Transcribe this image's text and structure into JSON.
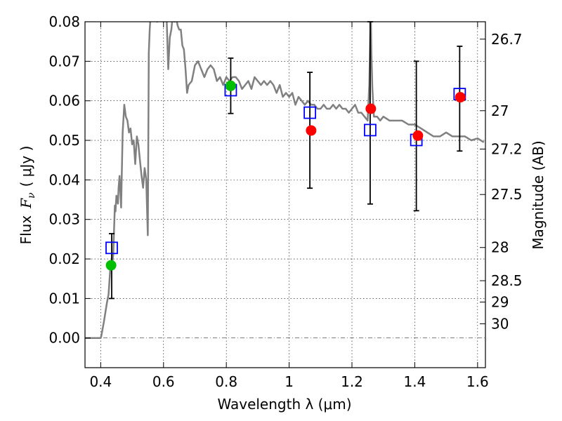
{
  "chart_data": {
    "type": "scatter",
    "xlabel": "Wavelength  λ (μm)",
    "ylabel_prefix": "Flux",
    "ylabel_symbol": "F",
    "ylabel_subscript": "ν",
    "ylabel_units": "( μJy )",
    "y2label": "Magnitude (AB)",
    "xlim": [
      0.35,
      1.625
    ],
    "ylim": [
      -0.0075,
      0.08
    ],
    "grid": true,
    "x_ticks": [
      0.4,
      0.6,
      0.8,
      1.0,
      1.2,
      1.4,
      1.6
    ],
    "x_tick_labels": [
      "0.4",
      "0.6",
      "0.8",
      "1",
      "1.2",
      "1.4",
      "1.6"
    ],
    "y_ticks": [
      0.0,
      0.01,
      0.02,
      0.03,
      0.04,
      0.05,
      0.06,
      0.07,
      0.08
    ],
    "y_tick_labels": [
      "0.00",
      "0.01",
      "0.02",
      "0.03",
      "0.04",
      "0.05",
      "0.06",
      "0.07",
      "0.08"
    ],
    "magnitude_ticks": [
      {
        "label": "26.7",
        "flux": 0.0756
      },
      {
        "label": "27",
        "flux": 0.0575
      },
      {
        "label": "27.2",
        "flux": 0.0478
      },
      {
        "label": "27.5",
        "flux": 0.0363
      },
      {
        "label": "28",
        "flux": 0.0229
      },
      {
        "label": "28.5",
        "flux": 0.0145
      },
      {
        "label": "29",
        "flux": 0.0091
      },
      {
        "label": "30",
        "flux": 0.0036
      }
    ],
    "series": [
      {
        "name": "model SED",
        "kind": "line",
        "color": "#808080",
        "x": [
          0.35,
          0.4,
          0.402,
          0.41,
          0.42,
          0.425,
          0.43,
          0.435,
          0.44,
          0.442,
          0.445,
          0.447,
          0.45,
          0.455,
          0.457,
          0.46,
          0.465,
          0.47,
          0.475,
          0.48,
          0.485,
          0.49,
          0.495,
          0.5,
          0.505,
          0.51,
          0.515,
          0.52,
          0.525,
          0.53,
          0.535,
          0.54,
          0.545,
          0.547,
          0.55,
          0.553,
          0.556,
          0.56,
          0.565,
          0.57,
          0.58,
          0.59,
          0.6,
          0.605,
          0.61,
          0.615,
          0.62,
          0.625,
          0.63,
          0.635,
          0.64,
          0.645,
          0.65,
          0.655,
          0.66,
          0.665,
          0.67,
          0.675,
          0.68,
          0.69,
          0.7,
          0.71,
          0.72,
          0.73,
          0.74,
          0.75,
          0.76,
          0.77,
          0.78,
          0.79,
          0.8,
          0.81,
          0.82,
          0.83,
          0.84,
          0.85,
          0.86,
          0.87,
          0.88,
          0.89,
          0.9,
          0.91,
          0.92,
          0.93,
          0.94,
          0.95,
          0.96,
          0.97,
          0.98,
          0.99,
          1.0,
          1.01,
          1.02,
          1.03,
          1.04,
          1.05,
          1.06,
          1.07,
          1.08,
          1.09,
          1.1,
          1.11,
          1.12,
          1.13,
          1.14,
          1.15,
          1.16,
          1.17,
          1.18,
          1.19,
          1.2,
          1.21,
          1.22,
          1.23,
          1.24,
          1.25,
          1.255,
          1.258,
          1.26,
          1.262,
          1.265,
          1.27,
          1.28,
          1.29,
          1.3,
          1.32,
          1.34,
          1.36,
          1.38,
          1.4,
          1.42,
          1.44,
          1.46,
          1.48,
          1.5,
          1.52,
          1.54,
          1.56,
          1.58,
          1.6,
          1.62
        ],
        "y": [
          0.0,
          0.0,
          0.0005,
          0.004,
          0.009,
          0.011,
          0.017,
          0.018,
          0.021,
          0.026,
          0.0335,
          0.032,
          0.036,
          0.034,
          0.038,
          0.041,
          0.033,
          0.052,
          0.059,
          0.056,
          0.055,
          0.052,
          0.053,
          0.049,
          0.05,
          0.044,
          0.051,
          0.049,
          0.045,
          0.041,
          0.038,
          0.043,
          0.04,
          0.034,
          0.026,
          0.072,
          0.078,
          0.083,
          0.086,
          0.083,
          0.08,
          0.085,
          0.08,
          0.084,
          0.081,
          0.068,
          0.076,
          0.078,
          0.082,
          0.08,
          0.081,
          0.079,
          0.078,
          0.078,
          0.074,
          0.073,
          0.068,
          0.062,
          0.064,
          0.065,
          0.069,
          0.07,
          0.068,
          0.066,
          0.068,
          0.069,
          0.068,
          0.065,
          0.066,
          0.064,
          0.066,
          0.065,
          0.066,
          0.066,
          0.065,
          0.063,
          0.064,
          0.065,
          0.063,
          0.066,
          0.065,
          0.064,
          0.065,
          0.064,
          0.065,
          0.064,
          0.062,
          0.064,
          0.061,
          0.062,
          0.061,
          0.062,
          0.059,
          0.061,
          0.06,
          0.059,
          0.06,
          0.059,
          0.059,
          0.058,
          0.058,
          0.059,
          0.058,
          0.058,
          0.059,
          0.058,
          0.059,
          0.058,
          0.058,
          0.057,
          0.058,
          0.059,
          0.057,
          0.057,
          0.056,
          0.055,
          0.064,
          0.075,
          0.082,
          0.072,
          0.063,
          0.056,
          0.056,
          0.055,
          0.056,
          0.055,
          0.055,
          0.055,
          0.054,
          0.054,
          0.053,
          0.052,
          0.051,
          0.051,
          0.052,
          0.051,
          0.051,
          0.051,
          0.05,
          0.0505,
          0.0495
        ]
      },
      {
        "name": "green points",
        "kind": "points",
        "color": "#00bf00",
        "points": [
          {
            "x": 0.433,
            "y": 0.0184
          },
          {
            "x": 0.814,
            "y": 0.0638
          }
        ]
      },
      {
        "name": "red points",
        "kind": "points",
        "color": "#ff0000",
        "points": [
          {
            "x": 1.07,
            "y": 0.0525
          },
          {
            "x": 1.26,
            "y": 0.058
          },
          {
            "x": 1.41,
            "y": 0.0512
          },
          {
            "x": 1.545,
            "y": 0.0609
          }
        ]
      },
      {
        "name": "blue squares",
        "kind": "squares",
        "color": "#0000ff",
        "points": [
          {
            "x": 0.435,
            "y": 0.0228
          },
          {
            "x": 0.814,
            "y": 0.0627
          },
          {
            "x": 1.066,
            "y": 0.057
          },
          {
            "x": 1.258,
            "y": 0.0526
          },
          {
            "x": 1.405,
            "y": 0.0501
          },
          {
            "x": 1.543,
            "y": 0.0617
          }
        ]
      },
      {
        "name": "error bars",
        "kind": "errorbars",
        "color": "#000000",
        "bars": [
          {
            "x": 0.435,
            "lo": 0.01,
            "hi": 0.0264
          },
          {
            "x": 0.814,
            "lo": 0.0568,
            "hi": 0.0708
          },
          {
            "x": 1.066,
            "lo": 0.0379,
            "hi": 0.0672
          },
          {
            "x": 1.258,
            "lo": 0.0339,
            "hi": 0.08
          },
          {
            "x": 1.405,
            "lo": 0.0322,
            "hi": 0.07
          },
          {
            "x": 1.543,
            "lo": 0.0473,
            "hi": 0.0738
          }
        ]
      }
    ]
  }
}
